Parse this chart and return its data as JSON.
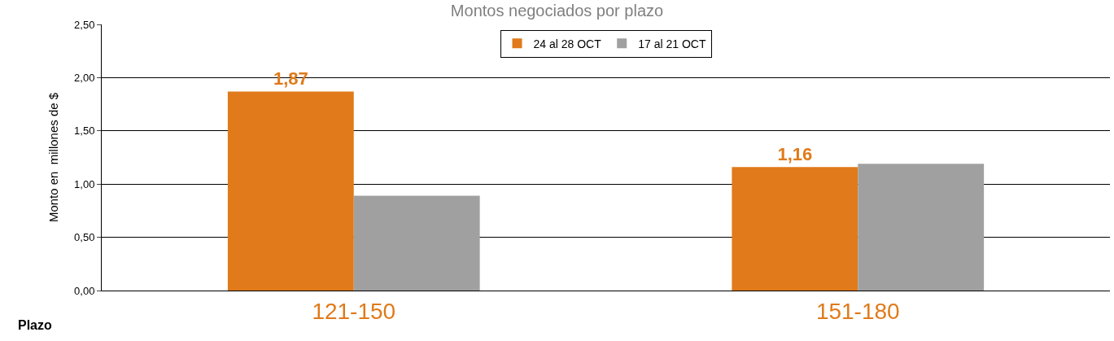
{
  "chart_data": {
    "type": "bar",
    "title": "Montos negociados por plazo",
    "ylabel": "Monto en  millones de $",
    "categories": [
      "121-150",
      "151-180"
    ],
    "series": [
      {
        "name": "24 al 28 OCT",
        "color": "#e07a1a",
        "values": [
          1.87,
          1.16
        ],
        "value_labels": [
          "1,87",
          "1,16"
        ]
      },
      {
        "name": "17 al 21 OCT",
        "color": "#a0a0a0",
        "values": [
          0.89,
          1.19
        ]
      }
    ],
    "ylim": [
      0,
      2.5
    ],
    "yticks": [
      {
        "value": 0,
        "label": "0,00"
      },
      {
        "value": 0.5,
        "label": "0,50"
      },
      {
        "value": 1,
        "label": "1,00"
      },
      {
        "value": 1.5,
        "label": "1,50"
      },
      {
        "value": 2,
        "label": "2,00"
      },
      {
        "value": 2.5,
        "label": "2,50"
      }
    ],
    "grid": "y",
    "legend": "top",
    "annotations": [
      "Plazo"
    ]
  }
}
